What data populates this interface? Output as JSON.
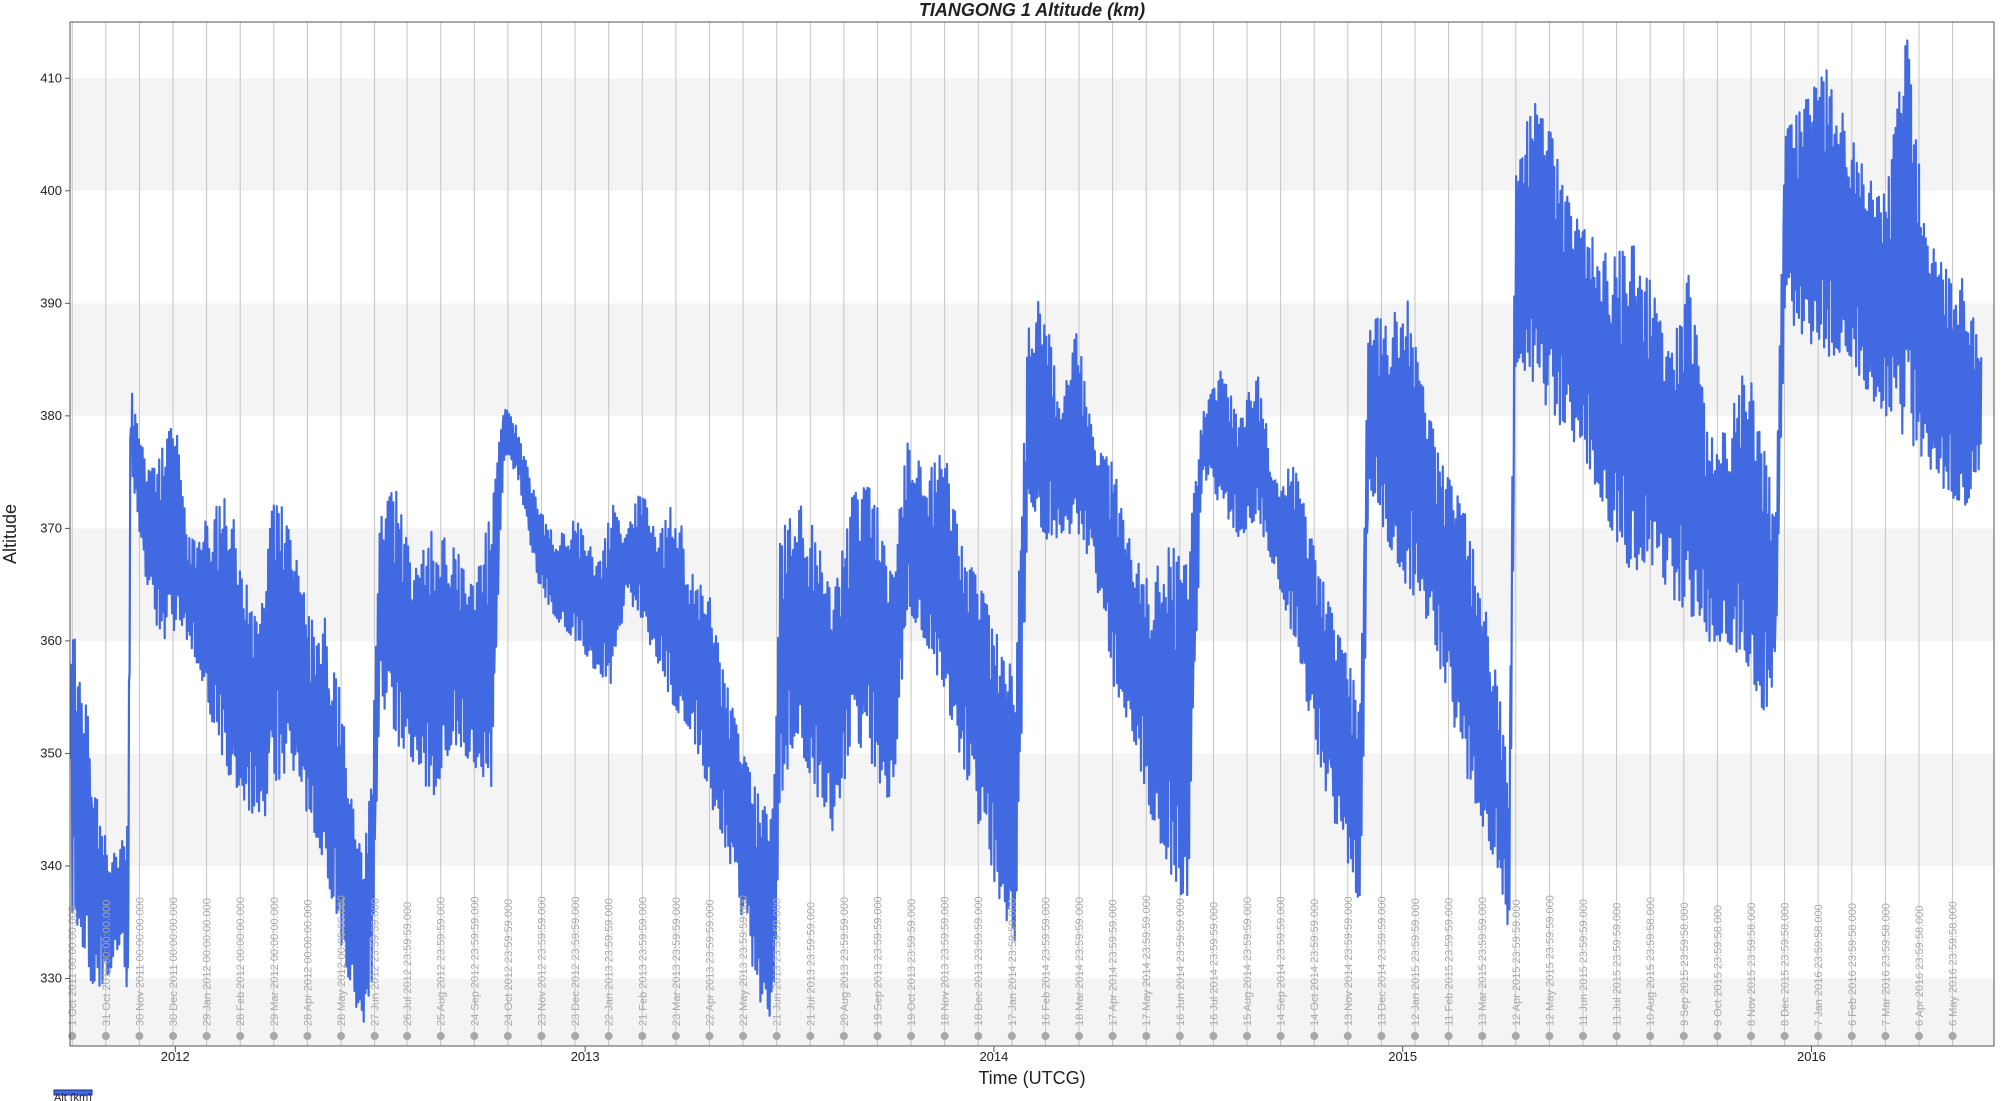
{
  "chart_data": {
    "type": "line",
    "title": "TIANGONG 1 Altitude (km)",
    "xlabel": "Time (UTCG)",
    "ylabel": "Altitude",
    "ylim": [
      324,
      415
    ],
    "xlim": [
      "2011-09-29",
      "2016-06-12"
    ],
    "yticks": [
      330,
      340,
      350,
      360,
      370,
      380,
      390,
      400,
      410
    ],
    "year_ticks": [
      {
        "label": "2012",
        "date": "2012-01-01"
      },
      {
        "label": "2013",
        "date": "2013-01-01"
      },
      {
        "label": "2014",
        "date": "2014-01-01"
      },
      {
        "label": "2015",
        "date": "2015-01-01"
      },
      {
        "label": "2016",
        "date": "2016-01-01"
      }
    ],
    "grid": true,
    "legend_position": "bottom-left",
    "date_markers": [
      {
        "date": "2011-10-01",
        "label": "1 Oct 2011 00:00:00.000"
      },
      {
        "date": "2011-10-31",
        "label": "31 Oct 2011 00:00:00.000"
      },
      {
        "date": "2011-11-30",
        "label": "30 Nov 2011 00:00:00.000"
      },
      {
        "date": "2011-12-30",
        "label": "30 Dec 2011 00:00:00.000"
      },
      {
        "date": "2012-01-29",
        "label": "29 Jan 2012 00:00:00.000"
      },
      {
        "date": "2012-02-28",
        "label": "28 Feb 2012 00:00:00.000"
      },
      {
        "date": "2012-03-29",
        "label": "29 Mar 2012 00:00:00.000"
      },
      {
        "date": "2012-04-28",
        "label": "28 Apr 2012 00:00:00.000"
      },
      {
        "date": "2012-05-28",
        "label": "28 May 2012 00:00:00.000"
      },
      {
        "date": "2012-06-27",
        "label": "27 Jun 2012 23:59:59.000"
      },
      {
        "date": "2012-07-26",
        "label": "26 Jul 2012 23:59:59.000"
      },
      {
        "date": "2012-08-25",
        "label": "25 Aug 2012 23:59:59.000"
      },
      {
        "date": "2012-09-24",
        "label": "24 Sep 2012 23:59:59.000"
      },
      {
        "date": "2012-10-24",
        "label": "24 Oct 2012 23:59:59.000"
      },
      {
        "date": "2012-11-23",
        "label": "23 Nov 2012 23:59:59.000"
      },
      {
        "date": "2012-12-23",
        "label": "23 Dec 2012 23:59:59.000"
      },
      {
        "date": "2013-01-22",
        "label": "22 Jan 2013 23:59:59.000"
      },
      {
        "date": "2013-02-21",
        "label": "21 Feb 2013 23:59:59.000"
      },
      {
        "date": "2013-03-23",
        "label": "23 Mar 2013 23:59:59.000"
      },
      {
        "date": "2013-04-22",
        "label": "22 Apr 2013 23:59:59.000"
      },
      {
        "date": "2013-05-22",
        "label": "22 May 2013 23:59:59.000"
      },
      {
        "date": "2013-06-21",
        "label": "21 Jun 2013 23:59:59.000"
      },
      {
        "date": "2013-07-21",
        "label": "21 Jul 2013 23:59:59.000"
      },
      {
        "date": "2013-08-20",
        "label": "20 Aug 2013 23:59:59.000"
      },
      {
        "date": "2013-09-19",
        "label": "19 Sep 2013 23:59:59.000"
      },
      {
        "date": "2013-10-19",
        "label": "19 Oct 2013 23:59:59.000"
      },
      {
        "date": "2013-11-18",
        "label": "18 Nov 2013 23:59:59.000"
      },
      {
        "date": "2013-12-18",
        "label": "18 Dec 2013 23:59:59.000"
      },
      {
        "date": "2014-01-17",
        "label": "17 Jan 2014 23:59:59.000"
      },
      {
        "date": "2014-02-16",
        "label": "16 Feb 2014 23:59:59.000"
      },
      {
        "date": "2014-03-18",
        "label": "18 Mar 2014 23:59:59.000"
      },
      {
        "date": "2014-04-17",
        "label": "17 Apr 2014 23:59:59.000"
      },
      {
        "date": "2014-05-17",
        "label": "17 May 2014 23:59:59.000"
      },
      {
        "date": "2014-06-16",
        "label": "16 Jun 2014 23:59:59.000"
      },
      {
        "date": "2014-07-16",
        "label": "16 Jul 2014 23:59:59.000"
      },
      {
        "date": "2014-08-15",
        "label": "15 Aug 2014 23:59:59.000"
      },
      {
        "date": "2014-09-14",
        "label": "14 Sep 2014 23:59:59.000"
      },
      {
        "date": "2014-10-14",
        "label": "14 Oct 2014 23:59:59.000"
      },
      {
        "date": "2014-11-13",
        "label": "13 Nov 2014 23:59:59.000"
      },
      {
        "date": "2014-12-13",
        "label": "13 Dec 2014 23:59:59.000"
      },
      {
        "date": "2015-01-12",
        "label": "12 Jan 2015 23:59:59.000"
      },
      {
        "date": "2015-02-11",
        "label": "11 Feb 2015 23:59:59.000"
      },
      {
        "date": "2015-03-13",
        "label": "13 Mar 2015 23:59:59.000"
      },
      {
        "date": "2015-04-12",
        "label": "12 Apr 2015 23:59:59.000"
      },
      {
        "date": "2015-05-12",
        "label": "12 May 2015 23:59:59.000"
      },
      {
        "date": "2015-06-11",
        "label": "11 Jun 2015 23:59:59.000"
      },
      {
        "date": "2015-07-11",
        "label": "11 Jul 2015 23:59:59.000"
      },
      {
        "date": "2015-08-10",
        "label": "10 Aug 2015 23:59:58.000"
      },
      {
        "date": "2015-09-09",
        "label": "9 Sep 2015 23:59:58.000"
      },
      {
        "date": "2015-10-09",
        "label": "9 Oct 2015 23:59:58.000"
      },
      {
        "date": "2015-11-08",
        "label": "8 Nov 2015 23:59:58.000"
      },
      {
        "date": "2015-12-08",
        "label": "8 Dec 2015 23:59:58.000"
      },
      {
        "date": "2016-01-07",
        "label": "7 Jan 2016 23:59:58.000"
      },
      {
        "date": "2016-02-06",
        "label": "6 Feb 2016 23:59:58.000"
      },
      {
        "date": "2016-03-07",
        "label": "7 Mar 2016 23:59:58.000"
      },
      {
        "date": "2016-04-06",
        "label": "6 Apr 2016 23:59:58.000"
      },
      {
        "date": "2016-05-06",
        "label": "6 May 2016 23:59:58.000"
      }
    ],
    "series": [
      {
        "name": "Alt (km)",
        "color": "#4169e1",
        "points": [
          {
            "x": "2011-09-30",
            "min": 336,
            "max": 363
          },
          {
            "x": "2011-10-08",
            "min": 334,
            "max": 358
          },
          {
            "x": "2011-10-16",
            "min": 330,
            "max": 353
          },
          {
            "x": "2011-10-24",
            "min": 329,
            "max": 345
          },
          {
            "x": "2011-11-01",
            "min": 330,
            "max": 342
          },
          {
            "x": "2011-11-09",
            "min": 332,
            "max": 341
          },
          {
            "x": "2011-11-15",
            "min": 334,
            "max": 343
          },
          {
            "x": "2011-11-20",
            "min": 326,
            "max": 344
          },
          {
            "x": "2011-11-22",
            "min": 376,
            "max": 383
          },
          {
            "x": "2011-11-30",
            "min": 369,
            "max": 378
          },
          {
            "x": "2011-12-10",
            "min": 363,
            "max": 375
          },
          {
            "x": "2011-12-20",
            "min": 360,
            "max": 377
          },
          {
            "x": "2012-01-01",
            "min": 361,
            "max": 380
          },
          {
            "x": "2012-01-12",
            "min": 360,
            "max": 369
          },
          {
            "x": "2012-01-24",
            "min": 357,
            "max": 370
          },
          {
            "x": "2012-02-05",
            "min": 352,
            "max": 372
          },
          {
            "x": "2012-02-18",
            "min": 348,
            "max": 373
          },
          {
            "x": "2012-03-02",
            "min": 346,
            "max": 366
          },
          {
            "x": "2012-03-16",
            "min": 343,
            "max": 361
          },
          {
            "x": "2012-03-30",
            "min": 347,
            "max": 374
          },
          {
            "x": "2012-04-14",
            "min": 349,
            "max": 369
          },
          {
            "x": "2012-04-30",
            "min": 344,
            "max": 362
          },
          {
            "x": "2012-05-14",
            "min": 340,
            "max": 362
          },
          {
            "x": "2012-05-28",
            "min": 333,
            "max": 355
          },
          {
            "x": "2012-06-08",
            "min": 328,
            "max": 345
          },
          {
            "x": "2012-06-18",
            "min": 326,
            "max": 341
          },
          {
            "x": "2012-06-25",
            "min": 330,
            "max": 350
          },
          {
            "x": "2012-07-02",
            "min": 355,
            "max": 371
          },
          {
            "x": "2012-07-16",
            "min": 351,
            "max": 374
          },
          {
            "x": "2012-08-01",
            "min": 349,
            "max": 366
          },
          {
            "x": "2012-08-18",
            "min": 346,
            "max": 370
          },
          {
            "x": "2012-09-04",
            "min": 351,
            "max": 369
          },
          {
            "x": "2012-09-22",
            "min": 349,
            "max": 365
          },
          {
            "x": "2012-10-10",
            "min": 347,
            "max": 372
          },
          {
            "x": "2012-10-20",
            "min": 376,
            "max": 381
          },
          {
            "x": "2012-11-01",
            "min": 375,
            "max": 379
          },
          {
            "x": "2012-11-20",
            "min": 365,
            "max": 372
          },
          {
            "x": "2012-12-06",
            "min": 362,
            "max": 369
          },
          {
            "x": "2012-12-24",
            "min": 360,
            "max": 371
          },
          {
            "x": "2013-01-12",
            "min": 357,
            "max": 367
          },
          {
            "x": "2013-01-26",
            "min": 356,
            "max": 372
          },
          {
            "x": "2013-02-06",
            "min": 364,
            "max": 369
          },
          {
            "x": "2013-02-20",
            "min": 362,
            "max": 374
          },
          {
            "x": "2013-03-06",
            "min": 358,
            "max": 369
          },
          {
            "x": "2013-03-22",
            "min": 354,
            "max": 373
          },
          {
            "x": "2013-04-06",
            "min": 352,
            "max": 366
          },
          {
            "x": "2013-04-22",
            "min": 346,
            "max": 364
          },
          {
            "x": "2013-05-08",
            "min": 341,
            "max": 356
          },
          {
            "x": "2013-05-22",
            "min": 335,
            "max": 350
          },
          {
            "x": "2013-06-06",
            "min": 328,
            "max": 346
          },
          {
            "x": "2013-06-18",
            "min": 326,
            "max": 345
          },
          {
            "x": "2013-06-24",
            "min": 345,
            "max": 369
          },
          {
            "x": "2013-07-08",
            "min": 352,
            "max": 373
          },
          {
            "x": "2013-07-24",
            "min": 347,
            "max": 370
          },
          {
            "x": "2013-08-10",
            "min": 343,
            "max": 364
          },
          {
            "x": "2013-08-28",
            "min": 351,
            "max": 373
          },
          {
            "x": "2013-09-14",
            "min": 349,
            "max": 374
          },
          {
            "x": "2013-10-02",
            "min": 345,
            "max": 366
          },
          {
            "x": "2013-10-16",
            "min": 363,
            "max": 378
          },
          {
            "x": "2013-11-01",
            "min": 360,
            "max": 375
          },
          {
            "x": "2013-11-18",
            "min": 355,
            "max": 377
          },
          {
            "x": "2013-12-04",
            "min": 349,
            "max": 368
          },
          {
            "x": "2013-12-20",
            "min": 343,
            "max": 365
          },
          {
            "x": "2014-01-06",
            "min": 337,
            "max": 360
          },
          {
            "x": "2014-01-20",
            "min": 333,
            "max": 357
          },
          {
            "x": "2014-02-01",
            "min": 373,
            "max": 389
          },
          {
            "x": "2014-02-16",
            "min": 369,
            "max": 391
          },
          {
            "x": "2014-03-01",
            "min": 369,
            "max": 380
          },
          {
            "x": "2014-03-16",
            "min": 370,
            "max": 388
          },
          {
            "x": "2014-04-01",
            "min": 366,
            "max": 377
          },
          {
            "x": "2014-04-18",
            "min": 356,
            "max": 376
          },
          {
            "x": "2014-05-04",
            "min": 352,
            "max": 368
          },
          {
            "x": "2014-05-20",
            "min": 345,
            "max": 365
          },
          {
            "x": "2014-06-06",
            "min": 340,
            "max": 369
          },
          {
            "x": "2014-06-22",
            "min": 334,
            "max": 367
          },
          {
            "x": "2014-07-06",
            "min": 375,
            "max": 380
          },
          {
            "x": "2014-07-22",
            "min": 372,
            "max": 384
          },
          {
            "x": "2014-08-08",
            "min": 369,
            "max": 380
          },
          {
            "x": "2014-08-24",
            "min": 371,
            "max": 384
          },
          {
            "x": "2014-09-10",
            "min": 366,
            "max": 374
          },
          {
            "x": "2014-09-26",
            "min": 360,
            "max": 376
          },
          {
            "x": "2014-10-12",
            "min": 352,
            "max": 369
          },
          {
            "x": "2014-10-28",
            "min": 345,
            "max": 363
          },
          {
            "x": "2014-11-14",
            "min": 340,
            "max": 358
          },
          {
            "x": "2014-11-24",
            "min": 336,
            "max": 355
          },
          {
            "x": "2014-12-02",
            "min": 374,
            "max": 390
          },
          {
            "x": "2014-12-18",
            "min": 369,
            "max": 388
          },
          {
            "x": "2015-01-04",
            "min": 365,
            "max": 391
          },
          {
            "x": "2015-01-22",
            "min": 362,
            "max": 381
          },
          {
            "x": "2015-02-08",
            "min": 356,
            "max": 375
          },
          {
            "x": "2015-02-24",
            "min": 349,
            "max": 372
          },
          {
            "x": "2015-03-12",
            "min": 344,
            "max": 365
          },
          {
            "x": "2015-03-26",
            "min": 340,
            "max": 357
          },
          {
            "x": "2015-04-06",
            "min": 334,
            "max": 348
          },
          {
            "x": "2015-04-12",
            "min": 385,
            "max": 403
          },
          {
            "x": "2015-04-28",
            "min": 383,
            "max": 408
          },
          {
            "x": "2015-05-14",
            "min": 380,
            "max": 405
          },
          {
            "x": "2015-06-01",
            "min": 378,
            "max": 398
          },
          {
            "x": "2015-06-18",
            "min": 375,
            "max": 396
          },
          {
            "x": "2015-07-06",
            "min": 370,
            "max": 394
          },
          {
            "x": "2015-07-24",
            "min": 366,
            "max": 396
          },
          {
            "x": "2015-08-10",
            "min": 367,
            "max": 392
          },
          {
            "x": "2015-08-28",
            "min": 364,
            "max": 385
          },
          {
            "x": "2015-09-14",
            "min": 362,
            "max": 393
          },
          {
            "x": "2015-10-01",
            "min": 360,
            "max": 378
          },
          {
            "x": "2015-10-18",
            "min": 360,
            "max": 379
          },
          {
            "x": "2015-11-04",
            "min": 358,
            "max": 385
          },
          {
            "x": "2015-11-20",
            "min": 353,
            "max": 378
          },
          {
            "x": "2015-11-30",
            "min": 357,
            "max": 370
          },
          {
            "x": "2015-12-08",
            "min": 389,
            "max": 405
          },
          {
            "x": "2015-12-26",
            "min": 387,
            "max": 408
          },
          {
            "x": "2016-01-14",
            "min": 385,
            "max": 411
          },
          {
            "x": "2016-02-01",
            "min": 386,
            "max": 406
          },
          {
            "x": "2016-02-20",
            "min": 382,
            "max": 401
          },
          {
            "x": "2016-03-08",
            "min": 380,
            "max": 400
          },
          {
            "x": "2016-03-26",
            "min": 378,
            "max": 414
          },
          {
            "x": "2016-04-12",
            "min": 376,
            "max": 396
          },
          {
            "x": "2016-04-30",
            "min": 373,
            "max": 393
          },
          {
            "x": "2016-05-18",
            "min": 372,
            "max": 392
          },
          {
            "x": "2016-06-01",
            "min": 376,
            "max": 385
          }
        ]
      }
    ]
  }
}
